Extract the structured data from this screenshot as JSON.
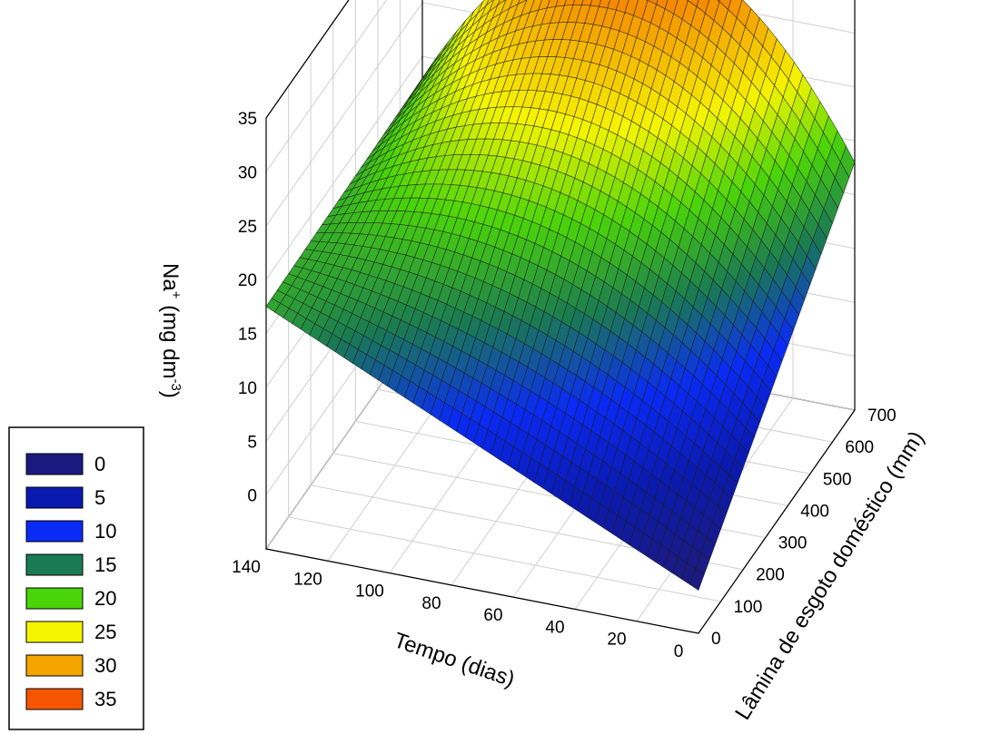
{
  "chart_data": {
    "type": "surface3d",
    "title": "",
    "xlabel": "Tempo (dias)",
    "ylabel": "Lâmina de esgoto doméstico (mm)",
    "zlabel_main": "Na",
    "zlabel_sup1": "+",
    "zlabel_mid": " (mg dm",
    "zlabel_sup2": "-3",
    "zlabel_end": ")",
    "x_ticks": [
      0,
      20,
      40,
      60,
      80,
      100,
      120,
      140
    ],
    "y_ticks": [
      0,
      100,
      200,
      300,
      400,
      500,
      600,
      700
    ],
    "z_ticks": [
      0,
      5,
      10,
      15,
      20,
      25,
      30,
      35
    ],
    "xlim": [
      0,
      140
    ],
    "ylim": [
      0,
      700
    ],
    "zlim": [
      -5,
      35
    ],
    "surface_corners": [
      {
        "tempo": 0,
        "lamina": 0,
        "na": -1
      },
      {
        "tempo": 140,
        "lamina": 0,
        "na": 17.5
      },
      {
        "tempo": 0,
        "lamina": 700,
        "na": 18
      },
      {
        "tempo": 140,
        "lamina": 700,
        "na": 18
      }
    ],
    "surface_peak": {
      "tempo": 70,
      "lamina": 700,
      "na": 35
    },
    "grid": true,
    "legend": {
      "position": "bottom-left",
      "levels": [
        {
          "label": "0",
          "color": "#1a1a80"
        },
        {
          "label": "5",
          "color": "#0a1ab0"
        },
        {
          "label": "10",
          "color": "#0a2af5"
        },
        {
          "label": "15",
          "color": "#1a7a52"
        },
        {
          "label": "20",
          "color": "#4ad40a"
        },
        {
          "label": "25",
          "color": "#f5f500"
        },
        {
          "label": "30",
          "color": "#f5a500"
        },
        {
          "label": "35",
          "color": "#f55500"
        }
      ]
    }
  }
}
